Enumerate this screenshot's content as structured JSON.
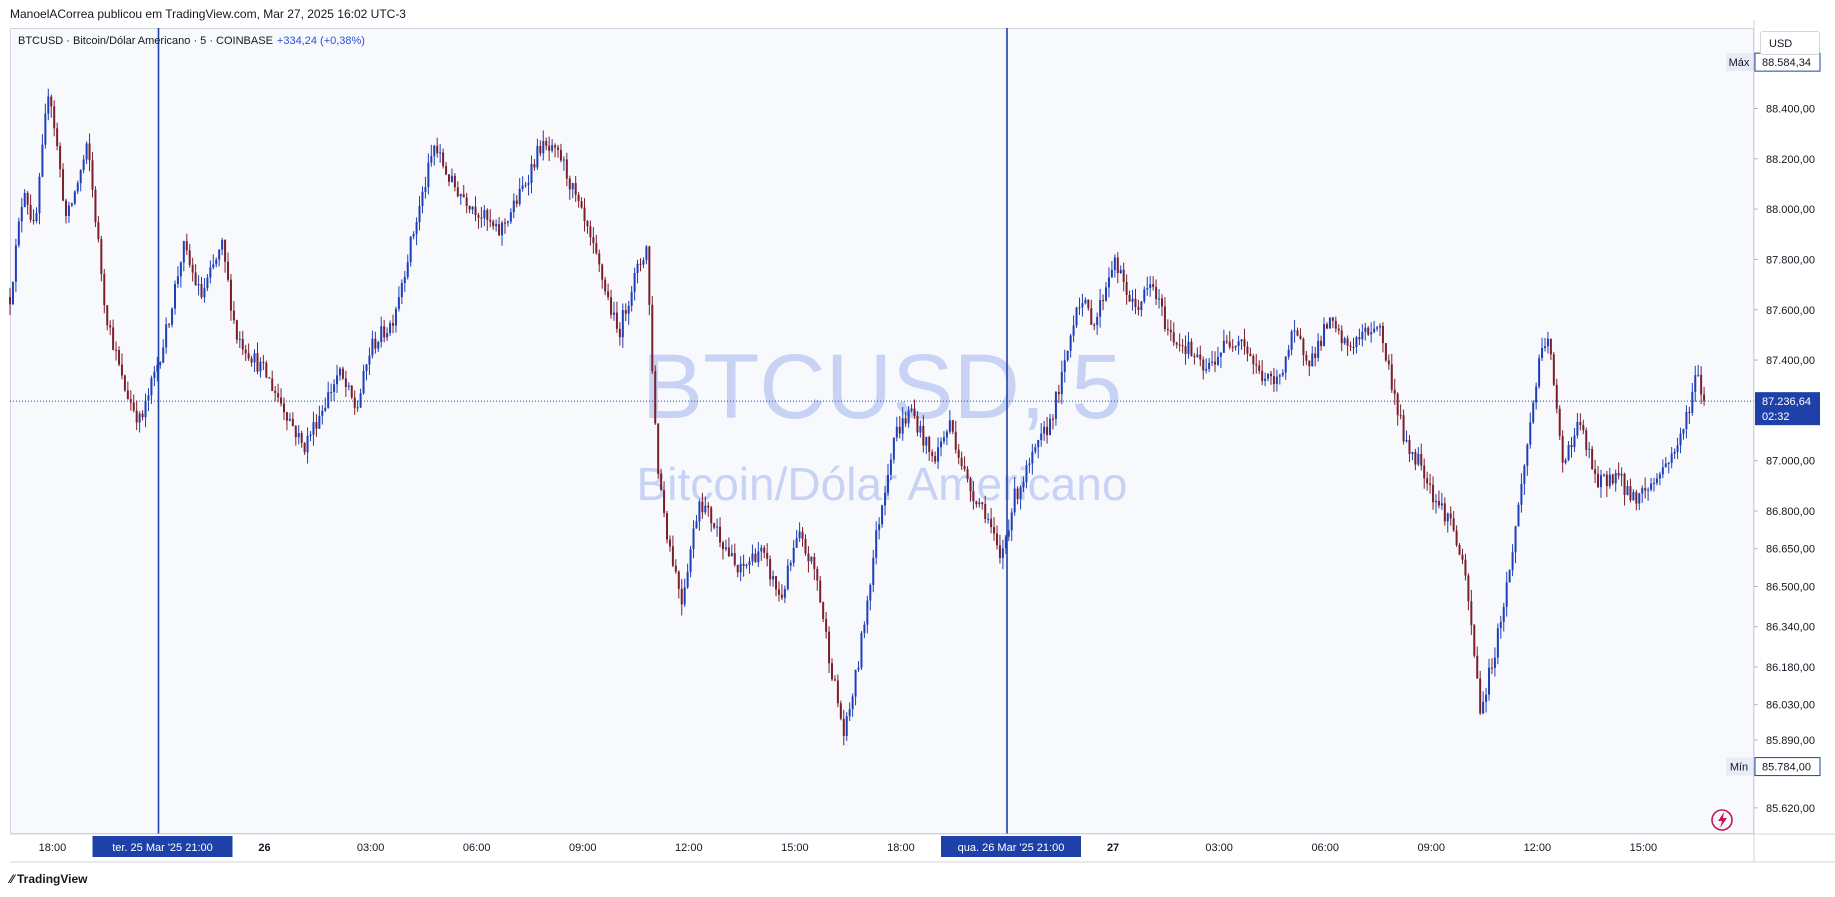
{
  "header": {
    "published": "ManoelACorrea publicou em TradingView.com, Mar 27, 2025 16:02 UTC-3"
  },
  "symbol": {
    "ticker": "BTCUSD",
    "name": "Bitcoin/Dólar Americano",
    "interval": "5",
    "exchange": "COINBASE",
    "change": "+334,24 (+0,38%)",
    "line": "BTCUSD · Bitcoin/Dólar Americano · 5 · COINBASE"
  },
  "watermark": {
    "line1": "BTCUSD, 5",
    "line2": "Bitcoin/Dólar Americano"
  },
  "currency_label": "USD",
  "price_axis": {
    "max_label": "Máx",
    "max_value": "88.584,34",
    "min_label": "Mín",
    "min_value": "85.784,00",
    "last_value": "87.236,64",
    "countdown": "02:32"
  },
  "time_axis": {
    "highlight_1": "ter. 25 Mar '25   21:00",
    "highlight_2": "qua. 26 Mar '25   21:00"
  },
  "brand": {
    "name": "TradingView"
  },
  "colors": {
    "up": "#1e3fb8",
    "down": "#7a1f2b",
    "accent": "#1e40a9",
    "watermark": "#c5d0f4"
  },
  "chart_data": {
    "type": "candlestick",
    "title": "BTCUSD, 5",
    "subtitle": "Bitcoin/Dólar Americano",
    "ylim": [
      85520,
      88720
    ],
    "y_ticks": [
      {
        "value": 88400,
        "label": "88.400,00"
      },
      {
        "value": 88200,
        "label": "88.200,00"
      },
      {
        "value": 88000,
        "label": "88.000,00"
      },
      {
        "value": 87800,
        "label": "87.800,00"
      },
      {
        "value": 87600,
        "label": "87.600,00"
      },
      {
        "value": 87400,
        "label": "87.400,00"
      },
      {
        "value": 87000,
        "label": "87.000,00"
      },
      {
        "value": 86800,
        "label": "86.800,00"
      },
      {
        "value": 86650,
        "label": "86.650,00"
      },
      {
        "value": 86500,
        "label": "86.500,00"
      },
      {
        "value": 86340,
        "label": "86.340,00"
      },
      {
        "value": 86180,
        "label": "86.180,00"
      },
      {
        "value": 86030,
        "label": "86.030,00"
      },
      {
        "value": 85890,
        "label": "85.890,00"
      },
      {
        "value": 85620,
        "label": "85.620,00"
      }
    ],
    "x_range_hours": [
      -7.2,
      42.1
    ],
    "x_ticks": [
      {
        "h": -6,
        "label": "18:00"
      },
      {
        "h": 0,
        "label": "26"
      },
      {
        "h": 3,
        "label": "03:00"
      },
      {
        "h": 6,
        "label": "06:00"
      },
      {
        "h": 9,
        "label": "09:00"
      },
      {
        "h": 12,
        "label": "12:00"
      },
      {
        "h": 15,
        "label": "15:00"
      },
      {
        "h": 18,
        "label": "18:00"
      },
      {
        "h": 24,
        "label": "27"
      },
      {
        "h": 27,
        "label": "03:00"
      },
      {
        "h": 30,
        "label": "06:00"
      },
      {
        "h": 33,
        "label": "09:00"
      },
      {
        "h": 36,
        "label": "12:00"
      },
      {
        "h": 39,
        "label": "15:00"
      }
    ],
    "vertical_markers_h": [
      -3,
      21
    ],
    "last_price": 87236.64,
    "max_price": 88584.34,
    "min_price": 85784.0,
    "price_path": [
      [
        -7.2,
        87650
      ],
      [
        -6.8,
        88100
      ],
      [
        -6.5,
        87900
      ],
      [
        -6.1,
        88500
      ],
      [
        -5.6,
        87950
      ],
      [
        -5.0,
        88250
      ],
      [
        -4.5,
        87600
      ],
      [
        -4.0,
        87300
      ],
      [
        -3.5,
        87150
      ],
      [
        -3.1,
        87350
      ],
      [
        -2.8,
        87500
      ],
      [
        -2.3,
        87850
      ],
      [
        -1.8,
        87650
      ],
      [
        -1.2,
        87850
      ],
      [
        -0.8,
        87500
      ],
      [
        0.0,
        87350
      ],
      [
        0.6,
        87200
      ],
      [
        1.1,
        87050
      ],
      [
        1.6,
        87200
      ],
      [
        2.1,
        87350
      ],
      [
        2.6,
        87200
      ],
      [
        3.0,
        87450
      ],
      [
        3.6,
        87550
      ],
      [
        4.2,
        87900
      ],
      [
        4.8,
        88250
      ],
      [
        5.3,
        88100
      ],
      [
        6.0,
        88000
      ],
      [
        6.6,
        87900
      ],
      [
        7.2,
        88050
      ],
      [
        7.8,
        88250
      ],
      [
        8.4,
        88200
      ],
      [
        8.9,
        88000
      ],
      [
        9.5,
        87750
      ],
      [
        10.0,
        87500
      ],
      [
        10.4,
        87700
      ],
      [
        10.8,
        87850
      ],
      [
        11.1,
        87000
      ],
      [
        11.4,
        86700
      ],
      [
        11.8,
        86450
      ],
      [
        12.3,
        86850
      ],
      [
        12.9,
        86700
      ],
      [
        13.4,
        86550
      ],
      [
        14.0,
        86650
      ],
      [
        14.6,
        86450
      ],
      [
        15.1,
        86700
      ],
      [
        15.6,
        86550
      ],
      [
        16.0,
        86200
      ],
      [
        16.4,
        85900
      ],
      [
        16.8,
        86200
      ],
      [
        17.3,
        86700
      ],
      [
        17.8,
        87100
      ],
      [
        18.3,
        87200
      ],
      [
        18.9,
        87000
      ],
      [
        19.4,
        87150
      ],
      [
        19.9,
        86900
      ],
      [
        20.4,
        86800
      ],
      [
        20.8,
        86600
      ],
      [
        21.2,
        86850
      ],
      [
        21.7,
        87000
      ],
      [
        22.2,
        87150
      ],
      [
        22.6,
        87350
      ],
      [
        23.0,
        87650
      ],
      [
        23.5,
        87550
      ],
      [
        24.0,
        87800
      ],
      [
        24.6,
        87600
      ],
      [
        25.1,
        87700
      ],
      [
        25.6,
        87500
      ],
      [
        26.1,
        87450
      ],
      [
        26.6,
        87350
      ],
      [
        27.1,
        87450
      ],
      [
        27.6,
        87500
      ],
      [
        28.1,
        87350
      ],
      [
        28.6,
        87300
      ],
      [
        29.1,
        87500
      ],
      [
        29.6,
        87400
      ],
      [
        30.1,
        87550
      ],
      [
        30.6,
        87450
      ],
      [
        31.1,
        87500
      ],
      [
        31.5,
        87550
      ],
      [
        31.9,
        87300
      ],
      [
        32.3,
        87050
      ],
      [
        32.7,
        87000
      ],
      [
        33.1,
        86850
      ],
      [
        33.6,
        86750
      ],
      [
        34.0,
        86500
      ],
      [
        34.4,
        86000
      ],
      [
        34.8,
        86250
      ],
      [
        35.2,
        86550
      ],
      [
        35.6,
        86950
      ],
      [
        36.0,
        87350
      ],
      [
        36.3,
        87500
      ],
      [
        36.7,
        87000
      ],
      [
        37.2,
        87150
      ],
      [
        37.7,
        86900
      ],
      [
        38.2,
        86950
      ],
      [
        38.7,
        86850
      ],
      [
        39.2,
        86900
      ],
      [
        39.7,
        87000
      ],
      [
        40.1,
        87100
      ],
      [
        40.5,
        87350
      ],
      [
        40.8,
        87200
      ]
    ]
  }
}
